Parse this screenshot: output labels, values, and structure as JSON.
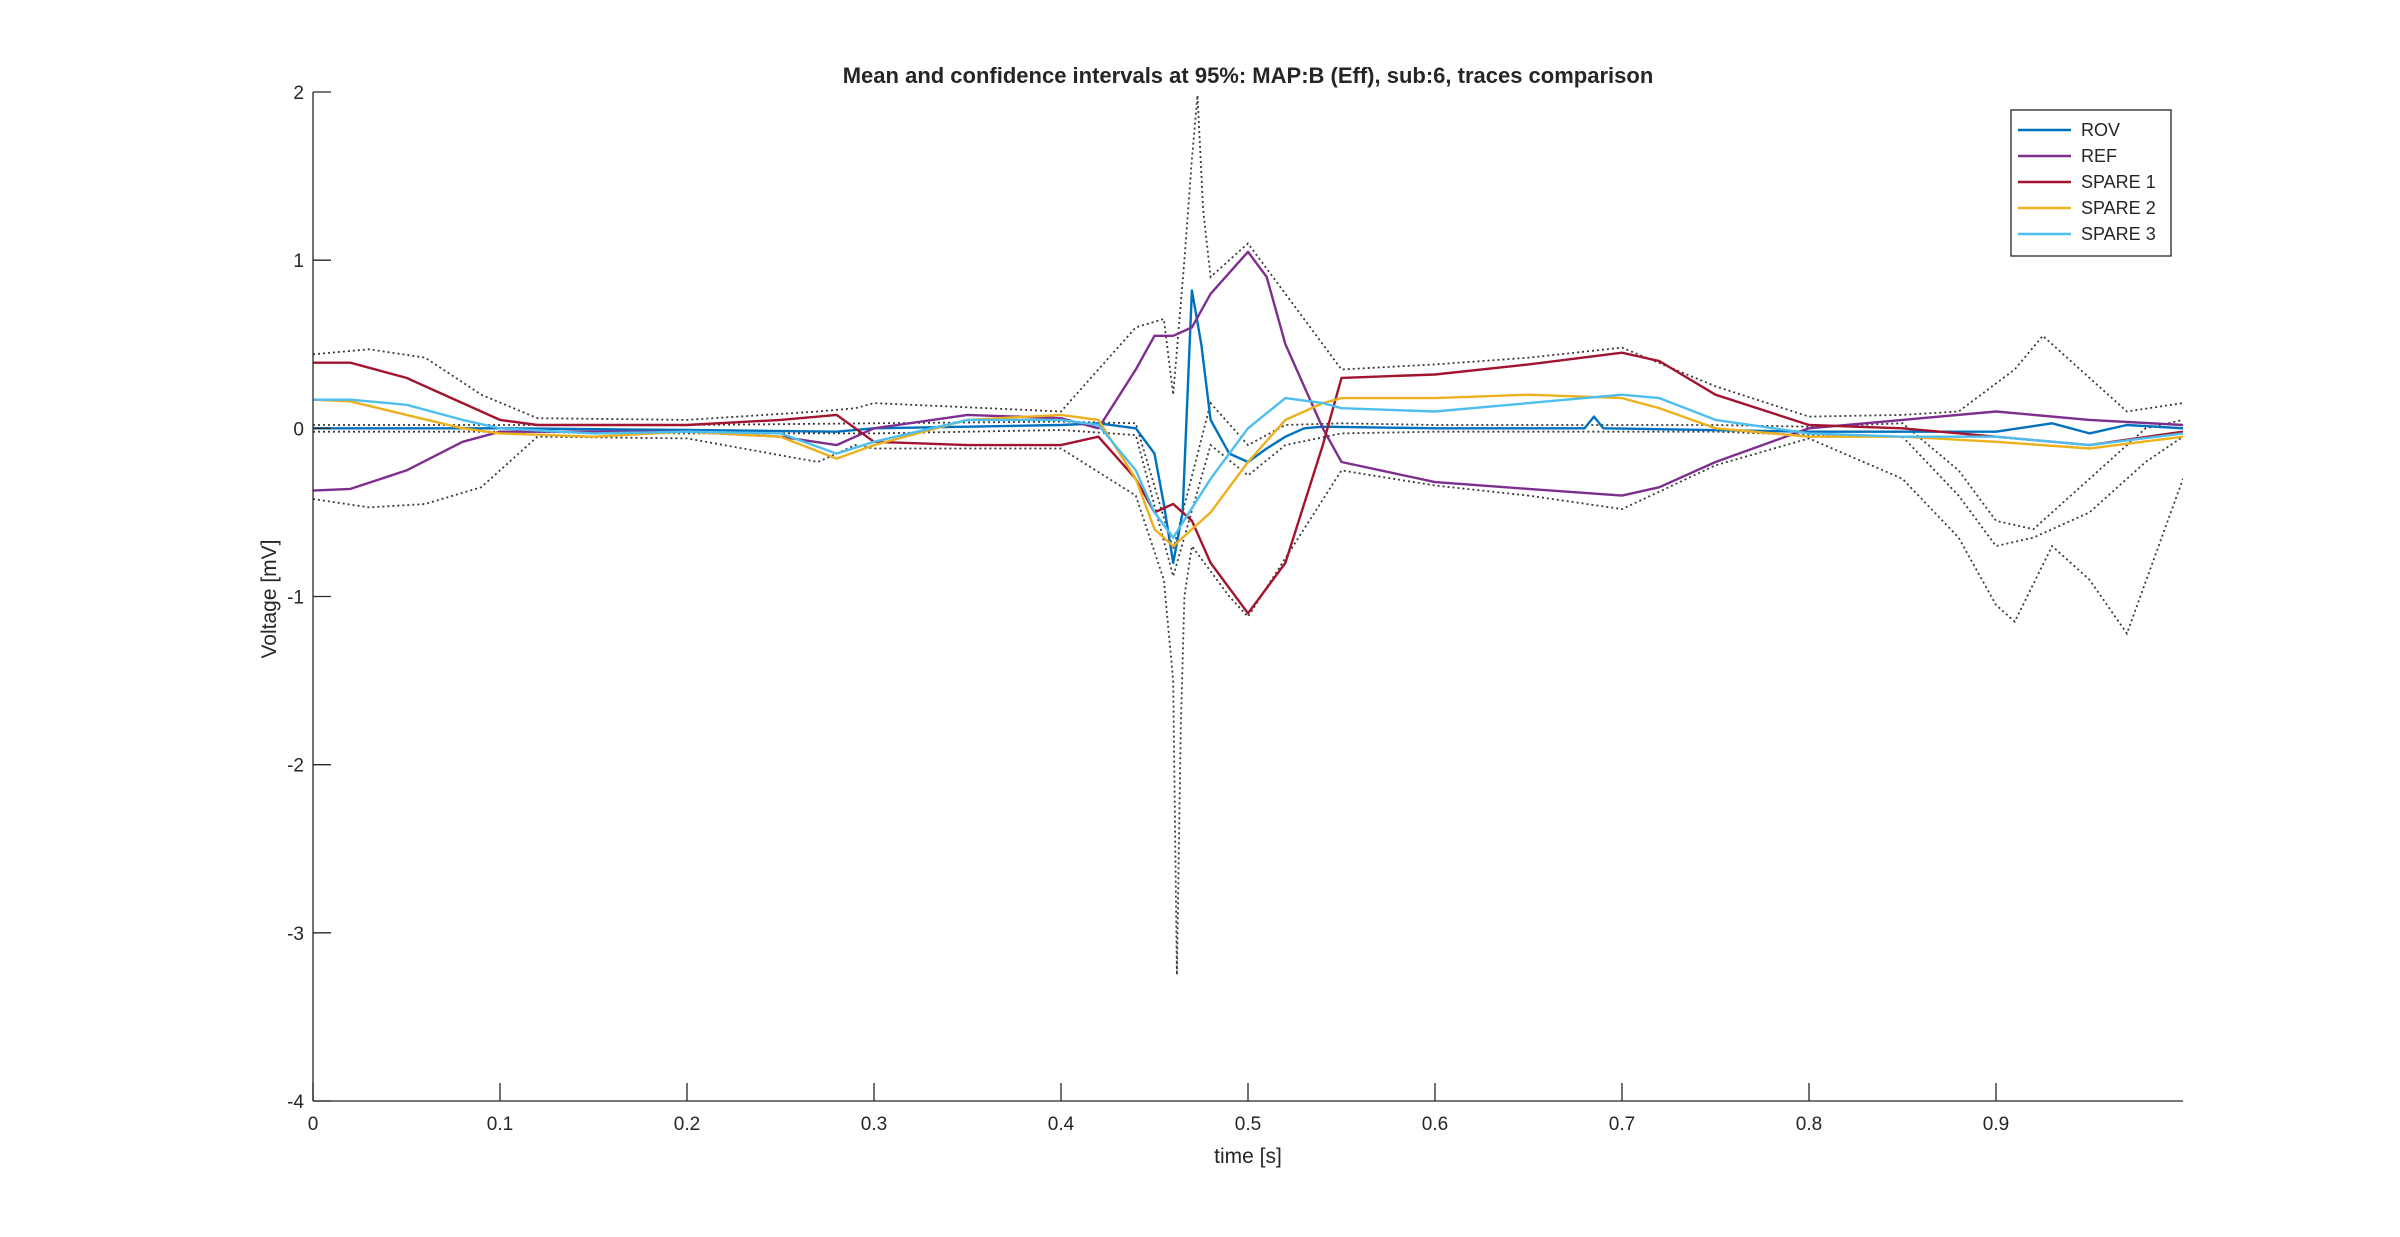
{
  "chart_data": {
    "type": "line",
    "title": "Mean and confidence intervals at 95%: MAP:B (Eff), sub:6, traces comparison",
    "xlabel": "time [s]",
    "ylabel": "Voltage [mV]",
    "xlim": [
      0,
      1.0
    ],
    "ylim": [
      -4,
      2
    ],
    "xticks": [
      0,
      0.1,
      0.2,
      0.3,
      0.4,
      0.5,
      0.6,
      0.7,
      0.8,
      0.9
    ],
    "xtick_labels": [
      "0",
      "0.1",
      "0.2",
      "0.3",
      "0.4",
      "0.5",
      "0.6",
      "0.7",
      "0.8",
      "0.9"
    ],
    "yticks": [
      -4,
      -3,
      -2,
      -1,
      0,
      1,
      2
    ],
    "ytick_labels": [
      "-4",
      "-3",
      "-2",
      "-1",
      "0",
      "1",
      "2"
    ],
    "grid": false,
    "legend_position": "top-right",
    "confidence_color": "#3a3a3a",
    "series": [
      {
        "name": "ROV",
        "color": "#0072BD",
        "x": [
          0,
          0.1,
          0.2,
          0.28,
          0.3,
          0.4,
          0.42,
          0.44,
          0.45,
          0.455,
          0.46,
          0.465,
          0.47,
          0.475,
          0.48,
          0.49,
          0.5,
          0.51,
          0.52,
          0.53,
          0.54,
          0.6,
          0.68,
          0.685,
          0.69,
          0.8,
          0.9,
          0.93,
          0.95,
          0.97,
          1.0
        ],
        "y": [
          0.0,
          0.0,
          -0.01,
          -0.02,
          0.0,
          0.02,
          0.03,
          0.0,
          -0.15,
          -0.45,
          -0.8,
          -0.5,
          0.82,
          0.5,
          0.05,
          -0.15,
          -0.2,
          -0.12,
          -0.05,
          0.0,
          0.01,
          0.0,
          0.0,
          0.07,
          0.0,
          -0.02,
          -0.02,
          0.03,
          -0.03,
          0.02,
          0.0
        ]
      },
      {
        "name": "REF",
        "color": "#7E2F8E",
        "x": [
          0,
          0.02,
          0.05,
          0.08,
          0.1,
          0.15,
          0.2,
          0.25,
          0.28,
          0.3,
          0.35,
          0.4,
          0.42,
          0.44,
          0.45,
          0.46,
          0.47,
          0.48,
          0.5,
          0.51,
          0.52,
          0.54,
          0.55,
          0.6,
          0.65,
          0.7,
          0.72,
          0.75,
          0.8,
          0.85,
          0.9,
          0.95,
          1.0
        ],
        "y": [
          -0.37,
          -0.36,
          -0.25,
          -0.08,
          -0.02,
          -0.02,
          -0.02,
          -0.05,
          -0.1,
          0.0,
          0.08,
          0.06,
          0.0,
          0.35,
          0.55,
          0.55,
          0.6,
          0.8,
          1.05,
          0.9,
          0.5,
          0.0,
          -0.2,
          -0.32,
          -0.36,
          -0.4,
          -0.35,
          -0.2,
          0.0,
          0.05,
          0.1,
          0.05,
          0.02
        ]
      },
      {
        "name": "SPARE 1",
        "color": "#A2142F",
        "x": [
          0,
          0.02,
          0.05,
          0.08,
          0.1,
          0.12,
          0.2,
          0.25,
          0.28,
          0.3,
          0.35,
          0.4,
          0.42,
          0.44,
          0.45,
          0.46,
          0.47,
          0.48,
          0.5,
          0.52,
          0.54,
          0.55,
          0.6,
          0.65,
          0.7,
          0.72,
          0.75,
          0.8,
          0.85,
          0.9,
          0.95,
          1.0
        ],
        "y": [
          0.39,
          0.39,
          0.3,
          0.15,
          0.05,
          0.02,
          0.02,
          0.05,
          0.08,
          -0.08,
          -0.1,
          -0.1,
          -0.05,
          -0.3,
          -0.5,
          -0.45,
          -0.55,
          -0.8,
          -1.1,
          -0.8,
          -0.1,
          0.3,
          0.32,
          0.38,
          0.45,
          0.4,
          0.2,
          0.02,
          0.0,
          -0.05,
          -0.1,
          -0.02
        ]
      },
      {
        "name": "SPARE 2",
        "color": "#EDB120",
        "x": [
          0,
          0.02,
          0.05,
          0.08,
          0.1,
          0.15,
          0.2,
          0.25,
          0.28,
          0.3,
          0.35,
          0.4,
          0.42,
          0.44,
          0.45,
          0.46,
          0.48,
          0.5,
          0.52,
          0.54,
          0.55,
          0.6,
          0.65,
          0.7,
          0.72,
          0.75,
          0.8,
          0.85,
          0.9,
          0.95,
          1.0
        ],
        "y": [
          0.17,
          0.16,
          0.08,
          0.0,
          -0.03,
          -0.05,
          -0.02,
          -0.05,
          -0.18,
          -0.1,
          0.05,
          0.08,
          0.05,
          -0.3,
          -0.6,
          -0.7,
          -0.5,
          -0.2,
          0.05,
          0.15,
          0.18,
          0.18,
          0.2,
          0.18,
          0.12,
          0.0,
          -0.05,
          -0.05,
          -0.08,
          -0.12,
          -0.05
        ]
      },
      {
        "name": "SPARE 3",
        "color": "#4DBEEE",
        "x": [
          0,
          0.02,
          0.05,
          0.08,
          0.1,
          0.15,
          0.2,
          0.25,
          0.28,
          0.3,
          0.35,
          0.4,
          0.42,
          0.44,
          0.45,
          0.46,
          0.48,
          0.5,
          0.52,
          0.54,
          0.55,
          0.6,
          0.65,
          0.7,
          0.72,
          0.75,
          0.8,
          0.85,
          0.9,
          0.95,
          1.0
        ],
        "y": [
          0.17,
          0.17,
          0.14,
          0.05,
          0.0,
          -0.03,
          -0.02,
          -0.03,
          -0.15,
          -0.08,
          0.05,
          0.05,
          0.02,
          -0.25,
          -0.5,
          -0.65,
          -0.3,
          0.0,
          0.18,
          0.15,
          0.12,
          0.1,
          0.15,
          0.2,
          0.18,
          0.05,
          -0.03,
          -0.05,
          -0.05,
          -0.1,
          -0.03
        ]
      }
    ],
    "confidence_bounds": [
      {
        "x": [
          0,
          0.03,
          0.06,
          0.09,
          0.12,
          0.2,
          0.27,
          0.29,
          0.3,
          0.4,
          0.44,
          0.455,
          0.46,
          0.463,
          0.466,
          0.47,
          0.473,
          0.476,
          0.48,
          0.49,
          0.5,
          0.55,
          0.6,
          0.65,
          0.7,
          0.75,
          0.8,
          0.85,
          0.88,
          0.91,
          0.925,
          0.94,
          0.97,
          1.0
        ],
        "y": [
          0.44,
          0.47,
          0.42,
          0.2,
          0.06,
          0.05,
          0.1,
          0.12,
          0.15,
          0.1,
          0.6,
          0.65,
          0.2,
          0.6,
          1.0,
          1.6,
          1.98,
          1.3,
          0.9,
          1.0,
          1.1,
          0.35,
          0.38,
          0.42,
          0.48,
          0.25,
          0.07,
          0.08,
          0.1,
          0.35,
          0.55,
          0.4,
          0.1,
          0.15
        ]
      },
      {
        "x": [
          0,
          0.03,
          0.06,
          0.09,
          0.12,
          0.2,
          0.27,
          0.29,
          0.3,
          0.4,
          0.44,
          0.455,
          0.46,
          0.462,
          0.464,
          0.466,
          0.47,
          0.48,
          0.49,
          0.5,
          0.55,
          0.6,
          0.65,
          0.7,
          0.75,
          0.8,
          0.85,
          0.88,
          0.9,
          0.91,
          0.93,
          0.95,
          0.97,
          1.0
        ],
        "y": [
          -0.42,
          -0.47,
          -0.45,
          -0.35,
          -0.05,
          -0.06,
          -0.2,
          -0.1,
          -0.12,
          -0.12,
          -0.4,
          -0.9,
          -1.5,
          -3.25,
          -1.8,
          -1.0,
          -0.7,
          -0.85,
          -1.0,
          -1.12,
          -0.25,
          -0.34,
          -0.4,
          -0.48,
          -0.22,
          -0.06,
          -0.3,
          -0.65,
          -1.05,
          -1.15,
          -0.7,
          -0.9,
          -1.22,
          -0.3
        ]
      },
      {
        "x": [
          0,
          0.05,
          0.1,
          0.2,
          0.3,
          0.4,
          0.44,
          0.46,
          0.48,
          0.5,
          0.52,
          0.55,
          0.6,
          0.7,
          0.75,
          0.8,
          0.85,
          0.88,
          0.9,
          0.92,
          0.95,
          0.98,
          1.0
        ],
        "y": [
          0.02,
          0.02,
          0.02,
          0.02,
          0.03,
          0.04,
          0.03,
          -0.72,
          0.15,
          -0.1,
          0.02,
          0.03,
          0.02,
          0.02,
          0.02,
          0.01,
          0.03,
          -0.25,
          -0.55,
          -0.6,
          -0.3,
          0.0,
          0.05
        ]
      },
      {
        "x": [
          0,
          0.05,
          0.1,
          0.2,
          0.3,
          0.4,
          0.44,
          0.46,
          0.48,
          0.5,
          0.52,
          0.55,
          0.6,
          0.7,
          0.75,
          0.8,
          0.85,
          0.88,
          0.9,
          0.92,
          0.95,
          0.98,
          1.0
        ],
        "y": [
          -0.02,
          -0.02,
          -0.02,
          -0.03,
          -0.03,
          -0.01,
          -0.04,
          -0.88,
          -0.1,
          -0.28,
          -0.1,
          -0.03,
          -0.02,
          -0.02,
          -0.02,
          -0.04,
          -0.05,
          -0.4,
          -0.7,
          -0.65,
          -0.5,
          -0.2,
          -0.05
        ]
      }
    ]
  }
}
